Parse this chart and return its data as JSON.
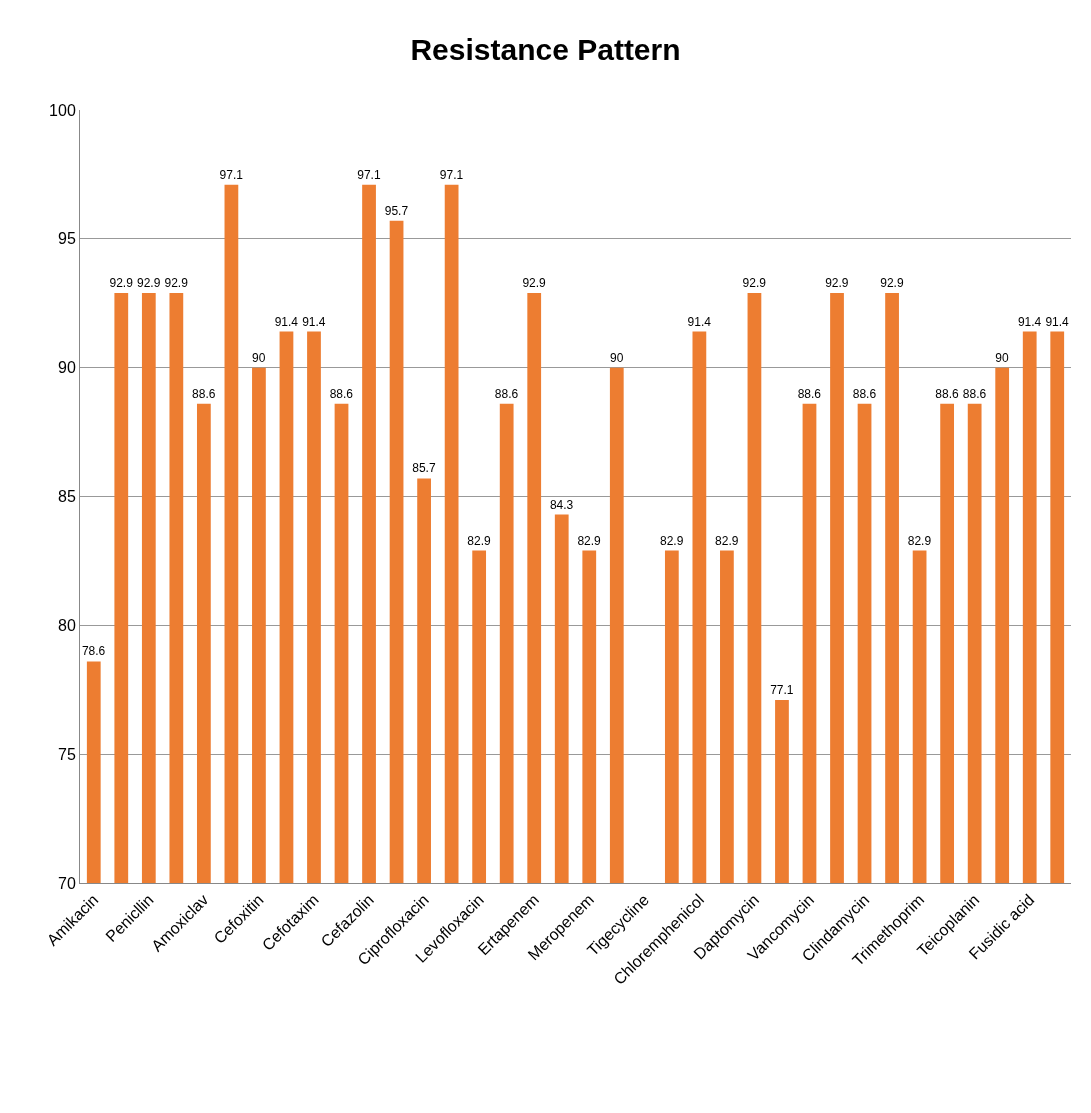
{
  "chart_data": {
    "type": "bar",
    "title": "Resistance Pattern",
    "categories": [
      "Amikacin",
      null,
      "Penicllin",
      null,
      "Amoxiclav",
      null,
      "Cefoxitin",
      null,
      "Cefotaxim",
      null,
      "Cefazolin",
      null,
      "Ciprofloxacin",
      null,
      "Levofloxacin",
      null,
      "Ertapenem",
      null,
      "Meropenem",
      null,
      "Tigecycline",
      null,
      "Chloremphenicol",
      null,
      "Daptomycin",
      null,
      "Vancomycin",
      null,
      "Clindamycin",
      null,
      "Trimethoprim",
      null,
      "Teicoplanin",
      null,
      "Fusidic acid",
      null
    ],
    "values": [
      78.6,
      92.9,
      92.9,
      92.9,
      88.6,
      97.1,
      90,
      91.4,
      91.4,
      88.6,
      97.1,
      95.7,
      85.7,
      97.1,
      82.9,
      88.6,
      92.9,
      84.3,
      82.9,
      90,
      70,
      82.9,
      91.4,
      82.9,
      92.9,
      77.1,
      88.6,
      92.9,
      88.6,
      92.9,
      82.9,
      88.6,
      88.6,
      90,
      91.4,
      91.4
    ],
    "value_labels": [
      "78.6",
      "92.9",
      "92.9",
      "92.9",
      "88.6",
      "97.1",
      "90",
      "91.4",
      "91.4",
      "88.6",
      "97.1",
      "95.7",
      "85.7",
      "97.1",
      "82.9",
      "88.6",
      "92.9",
      "84.3",
      "82.9",
      "90",
      null,
      "82.9",
      "91.4",
      "82.9",
      "92.9",
      "77.1",
      "88.6",
      "92.9",
      "88.6",
      "92.9",
      "82.9",
      "88.6",
      "88.6",
      "90",
      "91.4",
      "91.4"
    ],
    "color": "#ed7d31",
    "ylim": [
      70,
      100
    ],
    "yticks": [
      70,
      75,
      80,
      85,
      90,
      95,
      100
    ],
    "grid": "y"
  }
}
